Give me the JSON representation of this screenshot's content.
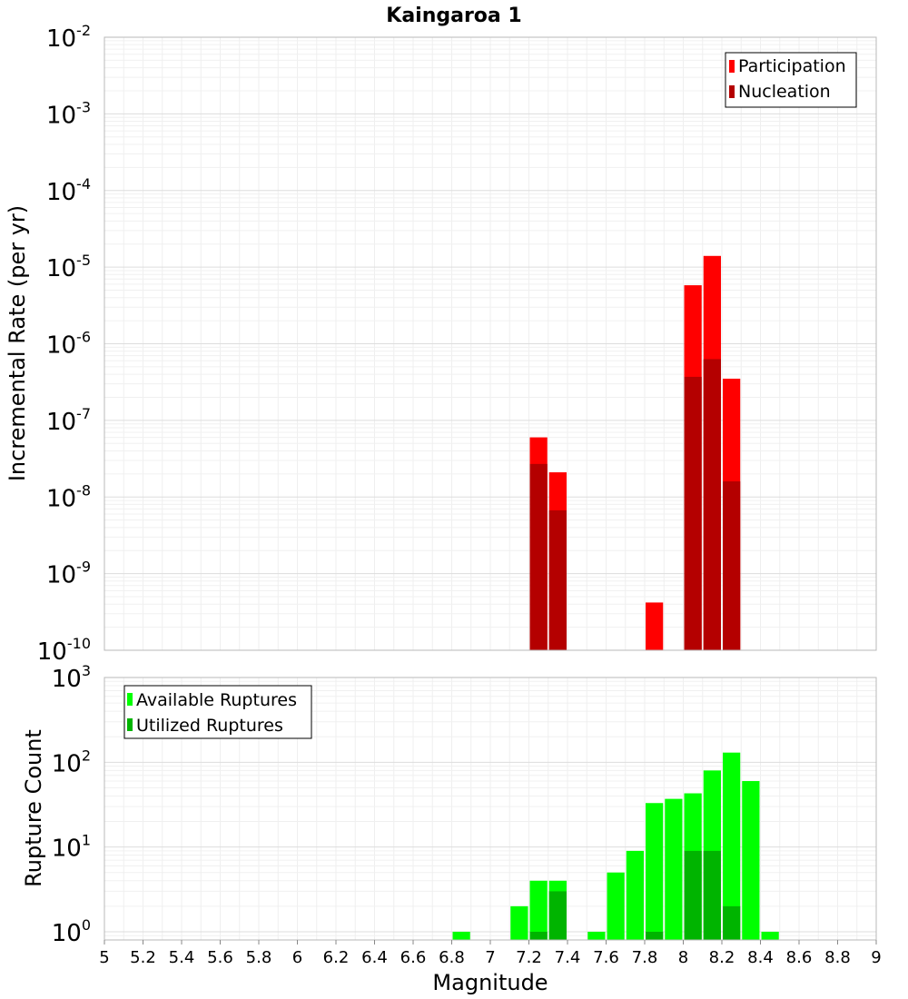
{
  "title": "Kaingaroa 1",
  "chart_data": [
    {
      "type": "bar",
      "title": "Kaingaroa 1",
      "xlabel": "Magnitude",
      "ylabel": "Incremental Rate (per yr)",
      "yscale": "log",
      "ylim": [
        1e-10,
        0.01
      ],
      "xlim": [
        5,
        9
      ],
      "bin_width": 0.1,
      "grid": true,
      "legend": "top-right",
      "y_tick_exponents": [
        -10,
        -9,
        -8,
        -7,
        -6,
        -5,
        -4,
        -3,
        -2
      ],
      "series": [
        {
          "name": "Participation",
          "color": "#ff0000",
          "x": [
            7.25,
            7.35,
            7.85,
            8.05,
            8.15,
            8.25
          ],
          "values": [
            6e-08,
            2.1e-08,
            4.2e-10,
            5.8e-06,
            1.4e-05,
            3.5e-07
          ]
        },
        {
          "name": "Nucleation",
          "color": "#b40000",
          "x": [
            7.25,
            7.35,
            8.05,
            8.15,
            8.25
          ],
          "values": [
            2.7e-08,
            6.7e-09,
            3.7e-07,
            6.3e-07,
            1.6e-08
          ]
        }
      ]
    },
    {
      "type": "bar",
      "xlabel": "Magnitude",
      "ylabel": "Rupture Count",
      "yscale": "log",
      "ylim": [
        0.8,
        1000
      ],
      "xlim": [
        5,
        9
      ],
      "bin_width": 0.1,
      "grid": true,
      "legend": "top-left",
      "y_tick_exponents": [
        0,
        1,
        2,
        3
      ],
      "x_ticks": [
        "5",
        "5.2",
        "5.4",
        "5.6",
        "5.8",
        "6",
        "6.2",
        "6.4",
        "6.6",
        "6.8",
        "7",
        "7.2",
        "7.4",
        "7.6",
        "7.8",
        "8",
        "8.2",
        "8.4",
        "8.6",
        "8.8",
        "9"
      ],
      "series": [
        {
          "name": "Available Ruptures",
          "color": "#00ff00",
          "x": [
            6.85,
            7.15,
            7.25,
            7.35,
            7.55,
            7.65,
            7.75,
            7.85,
            7.95,
            8.05,
            8.15,
            8.25,
            8.35,
            8.45
          ],
          "values": [
            1,
            2,
            4,
            4,
            1,
            5,
            9,
            33,
            37,
            43,
            80,
            130,
            60,
            1
          ]
        },
        {
          "name": "Utilized Ruptures",
          "color": "#00b400",
          "x": [
            7.25,
            7.35,
            7.85,
            8.05,
            8.15,
            8.25
          ],
          "values": [
            1,
            3,
            1,
            9,
            9,
            2
          ]
        }
      ]
    }
  ]
}
